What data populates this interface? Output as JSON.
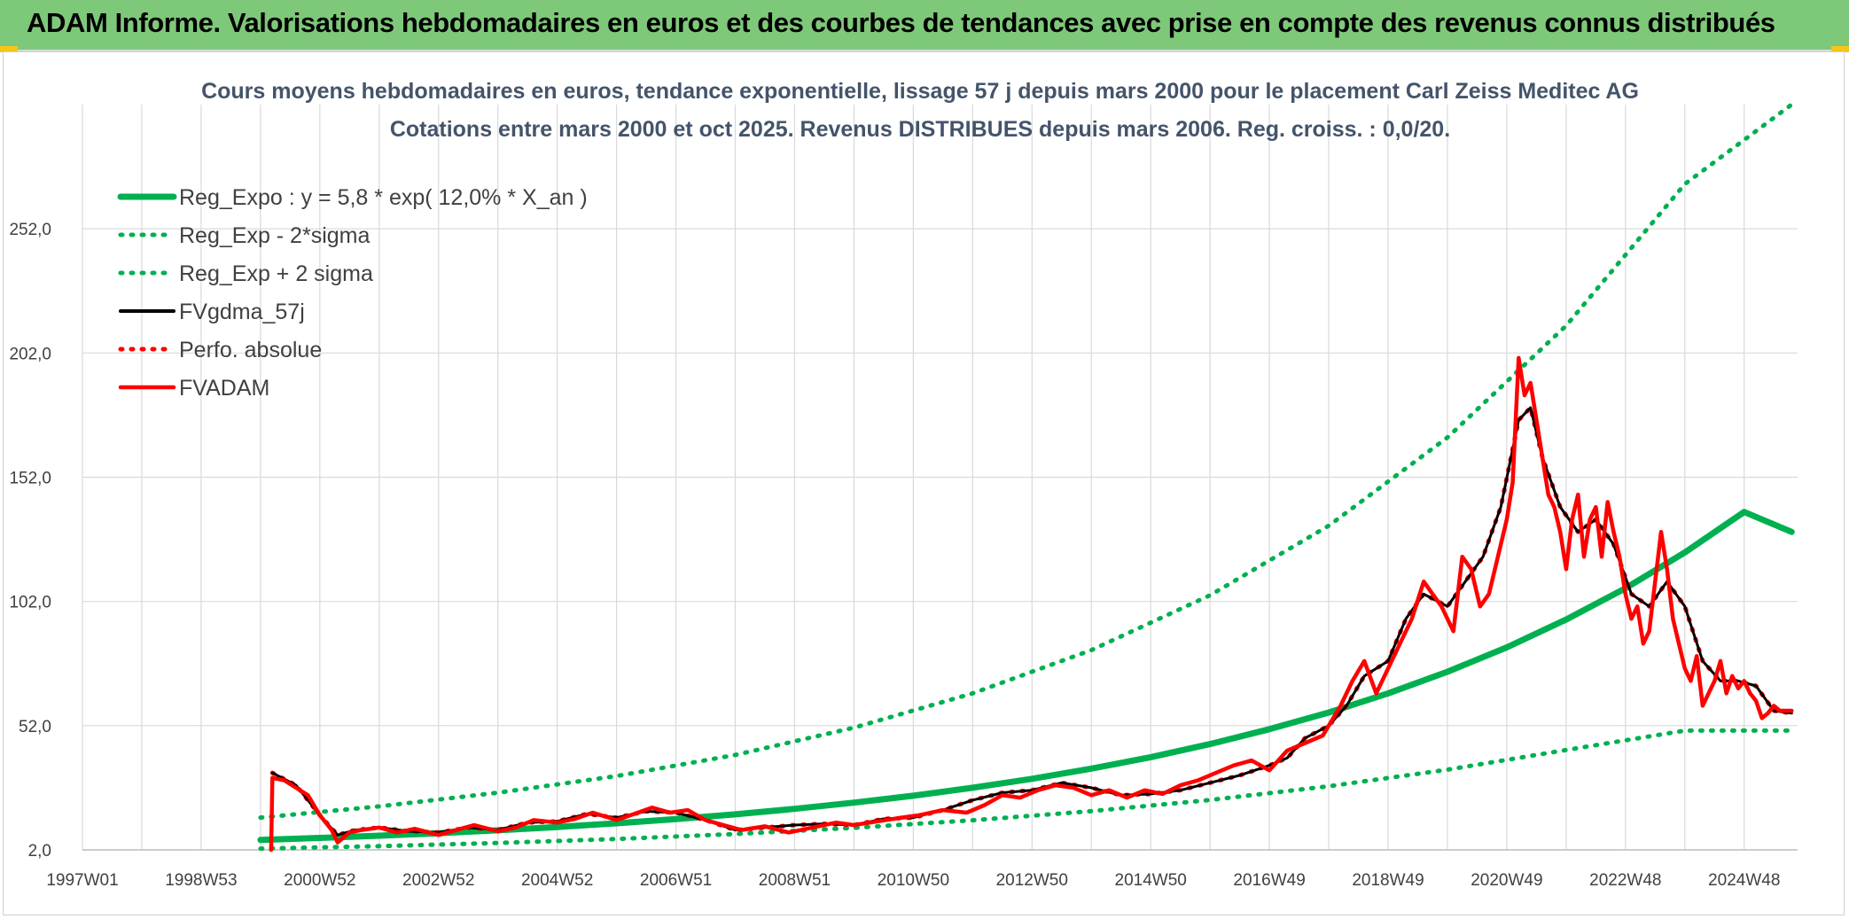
{
  "banner": {
    "title": "ADAM Informe. Valorisations hebdomadaires en euros et des courbes de tendances avec prise en compte des revenus connus distribués"
  },
  "colors": {
    "banner_bg": "#7ec87a",
    "green": "#00b050",
    "black": "#000000",
    "red": "#ff0000",
    "grid": "#d9d9d9"
  },
  "chart_data": {
    "type": "line",
    "title_line1": "Cours moyens hebdomadaires en euros, tendance exponentielle, lissage 57 j depuis mars 2000 pour le placement Carl Zeiss Meditec AG",
    "title_line2": "Cotations entre mars 2000 et oct 2025. Revenus DISTRIBUES depuis mars 2006. Reg. croiss. : 0,0/20.",
    "x_unit": "year",
    "xlim": [
      1997.0,
      2025.9
    ],
    "ylim": [
      2,
      302
    ],
    "grid": true,
    "legend_position": "top-left",
    "x_ticks": [
      {
        "label": "1997W01",
        "x": 1997.0
      },
      {
        "label": "1998W53",
        "x": 1999.0
      },
      {
        "label": "2000W52",
        "x": 2001.0
      },
      {
        "label": "2002W52",
        "x": 2003.0
      },
      {
        "label": "2004W52",
        "x": 2005.0
      },
      {
        "label": "2006W51",
        "x": 2007.0
      },
      {
        "label": "2008W51",
        "x": 2009.0
      },
      {
        "label": "2010W50",
        "x": 2011.0
      },
      {
        "label": "2012W50",
        "x": 2013.0
      },
      {
        "label": "2014W50",
        "x": 2015.0
      },
      {
        "label": "2016W49",
        "x": 2017.0
      },
      {
        "label": "2018W49",
        "x": 2019.0
      },
      {
        "label": "2020W49",
        "x": 2021.0
      },
      {
        "label": "2022W48",
        "x": 2023.0
      },
      {
        "label": "2024W48",
        "x": 2025.0
      }
    ],
    "y_ticks": [
      {
        "label": "2,0",
        "y": 2
      },
      {
        "label": "52,0",
        "y": 52
      },
      {
        "label": "102,0",
        "y": 102
      },
      {
        "label": "152,0",
        "y": 152
      },
      {
        "label": "202,0",
        "y": 202
      },
      {
        "label": "252,0",
        "y": 252
      }
    ],
    "series": [
      {
        "name": "Reg_Expo : y = 5,8 * exp( 12,0% *  X_an )",
        "style": "thick",
        "color": "#00b050",
        "x": [
          2000.0,
          2001,
          2002,
          2003,
          2004,
          2005,
          2006,
          2007,
          2008,
          2009,
          2010,
          2011,
          2012,
          2013,
          2014,
          2015,
          2016,
          2017,
          2018,
          2019,
          2020,
          2021,
          2022,
          2023,
          2024,
          2025,
          2025.8
        ],
        "y": [
          6.0,
          6.8,
          7.7,
          8.7,
          9.9,
          11.2,
          12.7,
          14.4,
          16.3,
          18.5,
          21.0,
          23.8,
          27.0,
          30.6,
          34.7,
          39.3,
          44.6,
          50.6,
          57.3,
          65.0,
          73.7,
          83.5,
          94.7,
          107.3,
          121.7,
          138.0,
          130.0
        ]
      },
      {
        "name": "Reg_Exp - 2*sigma",
        "style": "dotted",
        "color": "#00b050",
        "x": [
          2000.0,
          2002,
          2004,
          2006,
          2008,
          2010,
          2012,
          2014,
          2016,
          2018,
          2020,
          2022,
          2024,
          2025.8
        ],
        "y": [
          2.5,
          3.5,
          4.8,
          6.4,
          8.4,
          10.9,
          13.9,
          17.6,
          22.1,
          27.6,
          34.3,
          42.2,
          50.0,
          50.0
        ]
      },
      {
        "name": "Reg_Exp + 2 sigma",
        "style": "dotted",
        "color": "#00b050",
        "x": [
          2000.0,
          2002,
          2004,
          2006,
          2008,
          2010,
          2012,
          2014,
          2016,
          2018,
          2020,
          2022,
          2024,
          2025.8
        ],
        "y": [
          15.0,
          19.5,
          25.0,
          31.7,
          40.2,
          51.2,
          65.0,
          82.4,
          104.5,
          132.5,
          168.0,
          213.0,
          270.0,
          302.0
        ]
      },
      {
        "name": "FVgdma_57j",
        "style": "line",
        "color": "#000000",
        "x": [
          2000.2,
          2000.6,
          2001.0,
          2001.3,
          2001.6,
          2002.0,
          2002.5,
          2003.0,
          2003.5,
          2004.0,
          2004.5,
          2005.0,
          2005.5,
          2006.0,
          2006.5,
          2007.0,
          2007.5,
          2008.0,
          2008.5,
          2009.0,
          2009.5,
          2010.0,
          2010.5,
          2011.0,
          2011.5,
          2012.0,
          2012.5,
          2013.0,
          2013.5,
          2014.0,
          2014.5,
          2015.0,
          2015.5,
          2016.0,
          2016.5,
          2017.0,
          2017.3,
          2017.6,
          2018.0,
          2018.3,
          2018.6,
          2019.0,
          2019.3,
          2019.6,
          2020.0,
          2020.3,
          2020.6,
          2020.9,
          2021.2,
          2021.4,
          2021.6,
          2021.9,
          2022.2,
          2022.5,
          2022.8,
          2023.1,
          2023.4,
          2023.7,
          2024.0,
          2024.3,
          2024.6,
          2024.9,
          2025.2,
          2025.5,
          2025.8
        ],
        "y": [
          33.0,
          28.0,
          16.0,
          8.0,
          10.0,
          11.0,
          9.5,
          9.0,
          11.0,
          10.0,
          13.0,
          13.5,
          16.5,
          15.0,
          17.5,
          17.0,
          14.0,
          10.0,
          11.0,
          12.0,
          12.5,
          12.0,
          14.5,
          15.0,
          18.0,
          22.0,
          25.0,
          26.0,
          29.0,
          27.0,
          24.0,
          24.5,
          26.0,
          29.0,
          32.0,
          36.0,
          39.0,
          47.0,
          52.0,
          60.0,
          72.0,
          78.0,
          95.0,
          105.0,
          100.0,
          110.0,
          120.0,
          140.0,
          175.0,
          180.0,
          160.0,
          140.0,
          130.0,
          135.0,
          125.0,
          105.0,
          100.0,
          110.0,
          100.0,
          78.0,
          70.0,
          70.0,
          68.0,
          58.0,
          57.0
        ]
      },
      {
        "name": "Perfo. absolue",
        "style": "dotted",
        "color": "#ff0000",
        "x": [
          2000.2,
          2000.6,
          2001.0,
          2001.3,
          2001.6,
          2002.0,
          2002.5,
          2003.0,
          2003.5,
          2004.0,
          2004.5,
          2005.0,
          2005.5,
          2006.0,
          2006.5,
          2007.0,
          2007.5,
          2008.0,
          2008.5,
          2009.0,
          2009.5,
          2010.0,
          2010.5,
          2011.0,
          2011.5,
          2012.0,
          2012.5,
          2013.0,
          2013.5,
          2014.0,
          2014.5,
          2015.0,
          2015.5,
          2016.0,
          2016.5,
          2017.0,
          2017.3,
          2017.6,
          2018.0,
          2018.3,
          2018.6,
          2019.0,
          2019.3,
          2019.6,
          2020.0,
          2020.3,
          2020.6,
          2020.9,
          2021.2,
          2021.4,
          2021.6,
          2021.9,
          2022.2,
          2022.5,
          2022.8,
          2023.1,
          2023.4,
          2023.7,
          2024.0,
          2024.3,
          2024.6,
          2024.9,
          2025.2,
          2025.5,
          2025.8
        ],
        "y": [
          33.0,
          28.0,
          16.0,
          8.0,
          10.0,
          11.0,
          9.5,
          9.0,
          11.0,
          10.0,
          13.0,
          13.5,
          16.5,
          15.0,
          17.5,
          17.0,
          14.0,
          10.0,
          11.0,
          12.0,
          12.5,
          12.0,
          14.5,
          15.0,
          18.0,
          22.0,
          25.0,
          26.0,
          29.0,
          27.0,
          24.0,
          24.5,
          26.0,
          29.0,
          32.0,
          36.0,
          39.0,
          47.0,
          52.0,
          60.0,
          72.0,
          78.0,
          95.0,
          105.0,
          100.0,
          110.0,
          120.0,
          140.0,
          175.0,
          180.0,
          160.0,
          140.0,
          130.0,
          135.0,
          125.0,
          105.0,
          100.0,
          110.0,
          100.0,
          78.0,
          70.0,
          70.0,
          68.0,
          58.0,
          57.0
        ]
      },
      {
        "name": "FVADAM",
        "style": "thick-line",
        "color": "#ff0000",
        "x": [
          2000.18,
          2000.2,
          2000.4,
          2000.6,
          2000.8,
          2001.0,
          2001.2,
          2001.3,
          2001.5,
          2001.7,
          2002.0,
          2002.3,
          2002.6,
          2003.0,
          2003.3,
          2003.6,
          2004.0,
          2004.3,
          2004.6,
          2005.0,
          2005.3,
          2005.6,
          2006.0,
          2006.3,
          2006.6,
          2006.9,
          2007.2,
          2007.5,
          2007.8,
          2008.1,
          2008.5,
          2008.9,
          2009.3,
          2009.7,
          2010.0,
          2010.4,
          2010.8,
          2011.1,
          2011.5,
          2011.9,
          2012.2,
          2012.5,
          2012.8,
          2013.1,
          2013.4,
          2013.7,
          2014.0,
          2014.3,
          2014.6,
          2014.9,
          2015.2,
          2015.5,
          2015.8,
          2016.1,
          2016.4,
          2016.7,
          2017.0,
          2017.3,
          2017.6,
          2017.9,
          2018.2,
          2018.4,
          2018.6,
          2018.8,
          2019.0,
          2019.2,
          2019.4,
          2019.6,
          2019.75,
          2019.9,
          2020.1,
          2020.25,
          2020.4,
          2020.55,
          2020.7,
          2020.85,
          2021.0,
          2021.1,
          2021.2,
          2021.3,
          2021.4,
          2021.5,
          2021.6,
          2021.7,
          2021.8,
          2021.9,
          2022.0,
          2022.1,
          2022.2,
          2022.3,
          2022.4,
          2022.5,
          2022.6,
          2022.7,
          2022.8,
          2022.9,
          2023.0,
          2023.1,
          2023.2,
          2023.3,
          2023.4,
          2023.5,
          2023.6,
          2023.7,
          2023.8,
          2023.9,
          2024.0,
          2024.1,
          2024.2,
          2024.3,
          2024.4,
          2024.5,
          2024.6,
          2024.7,
          2024.8,
          2024.9,
          2025.0,
          2025.1,
          2025.2,
          2025.3,
          2025.4,
          2025.5,
          2025.6,
          2025.8
        ],
        "y": [
          2.0,
          31.0,
          30.0,
          27.0,
          24.0,
          16.0,
          10.0,
          5.0,
          9.0,
          10.0,
          11.0,
          9.0,
          10.5,
          8.0,
          10.0,
          12.0,
          9.5,
          11.0,
          14.0,
          13.0,
          14.5,
          17.0,
          14.0,
          16.5,
          19.0,
          17.0,
          18.0,
          14.0,
          12.0,
          10.0,
          11.5,
          9.0,
          11.0,
          13.0,
          12.0,
          13.5,
          15.0,
          16.0,
          18.0,
          17.0,
          20.0,
          24.0,
          23.0,
          26.0,
          28.0,
          27.0,
          24.0,
          26.0,
          23.0,
          26.0,
          24.5,
          28.0,
          30.0,
          33.0,
          36.0,
          38.0,
          34.0,
          42.0,
          45.0,
          48.0,
          60.0,
          70.0,
          78.0,
          65.0,
          75.0,
          85.0,
          95.0,
          110.0,
          105.0,
          100.0,
          90.0,
          120.0,
          115.0,
          100.0,
          105.0,
          120.0,
          135.0,
          150.0,
          200.0,
          185.0,
          190.0,
          175.0,
          160.0,
          145.0,
          140.0,
          130.0,
          115.0,
          135.0,
          145.0,
          120.0,
          135.0,
          140.0,
          120.0,
          142.0,
          130.0,
          120.0,
          105.0,
          95.0,
          100.0,
          85.0,
          90.0,
          110.0,
          130.0,
          115.0,
          95.0,
          85.0,
          75.0,
          70.0,
          80.0,
          60.0,
          65.0,
          70.0,
          78.0,
          65.0,
          72.0,
          67.0,
          70.0,
          65.0,
          62.0,
          55.0,
          57.0,
          60.0,
          58.0,
          58.0
        ]
      }
    ]
  }
}
